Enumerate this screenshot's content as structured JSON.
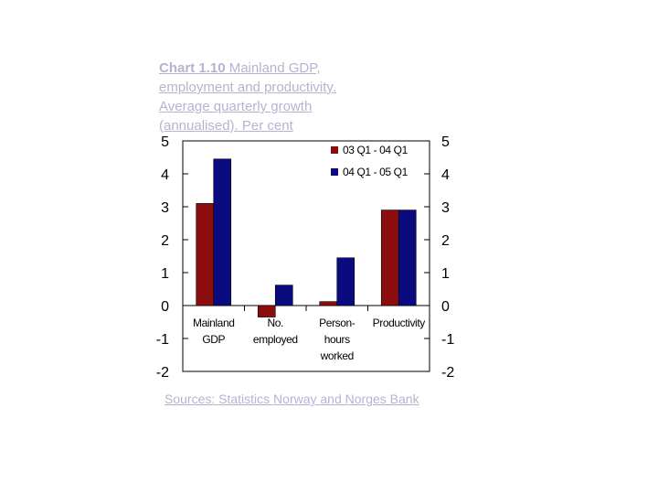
{
  "title": {
    "number": "Chart 1.10",
    "text": "Mainland GDP, employment and productivity. Average quarterly growth (annualised). Per cent"
  },
  "source": "Sources: Statistics Norway and Norges Bank",
  "chart_data": {
    "type": "bar",
    "categories": [
      [
        "Mainland",
        "GDP"
      ],
      [
        "No.",
        "employed"
      ],
      [
        "Person-",
        "hours",
        "worked"
      ],
      [
        "Productivity"
      ]
    ],
    "series": [
      {
        "name": "03 Q1 - 04 Q1",
        "color": "#8b0d0d",
        "values": [
          3.1,
          -0.35,
          0.12,
          2.9
        ]
      },
      {
        "name": "04 Q1 - 05 Q1",
        "color": "#0b0b80",
        "values": [
          4.45,
          0.62,
          1.45,
          2.9
        ]
      }
    ],
    "ylim": [
      -2,
      5
    ],
    "yticks": [
      "5",
      "4",
      "3",
      "2",
      "1",
      "0",
      "-1",
      "-2"
    ],
    "grid": false,
    "legend_position": "top-right"
  }
}
